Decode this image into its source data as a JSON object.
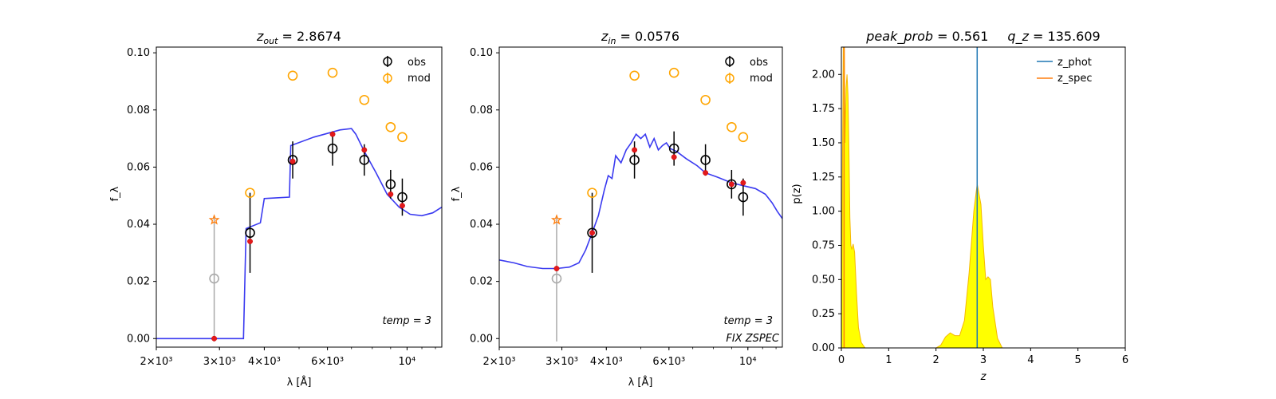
{
  "chart_data": [
    {
      "type": "scatter",
      "title_var": "z",
      "title_sub": "out",
      "title_value": "2.8674",
      "xlabel": "λ [Å]",
      "ylabel": "f_λ",
      "xscale": "log",
      "xlim": [
        2000,
        12500
      ],
      "ylim": [
        -0.003,
        0.102
      ],
      "xticks": [
        {
          "value": 2000,
          "label": "2×10³"
        },
        {
          "value": 3000,
          "label": "3×10³"
        },
        {
          "value": 4000,
          "label": "4×10³"
        },
        {
          "value": 6000,
          "label": "6×10³"
        },
        {
          "value": 10000,
          "label": "10⁴"
        }
      ],
      "yticks": [
        "0.00",
        "0.02",
        "0.04",
        "0.06",
        "0.08",
        "0.10"
      ],
      "ytick_values": [
        0.0,
        0.02,
        0.04,
        0.06,
        0.08,
        0.1
      ],
      "legend": {
        "position": "top-right",
        "entries": [
          "obs",
          "mod"
        ]
      },
      "annotations": [
        "temp = 3"
      ],
      "obs": [
        {
          "x": 2900,
          "y": 0.021,
          "err": 0.022,
          "color": "#aaaaaa"
        },
        {
          "x": 3650,
          "y": 0.037,
          "err": 0.014,
          "color": "#000000"
        },
        {
          "x": 4800,
          "y": 0.0625,
          "err": 0.0065,
          "color": "#000000"
        },
        {
          "x": 6200,
          "y": 0.0665,
          "err": 0.006,
          "color": "#000000"
        },
        {
          "x": 7600,
          "y": 0.0625,
          "err": 0.0055,
          "color": "#000000"
        },
        {
          "x": 9000,
          "y": 0.054,
          "err": 0.005,
          "color": "#000000"
        },
        {
          "x": 9700,
          "y": 0.0495,
          "err": 0.0065,
          "color": "#000000"
        }
      ],
      "mod": [
        {
          "x": 3650,
          "y": 0.051
        },
        {
          "x": 4800,
          "y": 0.092
        },
        {
          "x": 6200,
          "y": 0.093
        },
        {
          "x": 7600,
          "y": 0.0835
        },
        {
          "x": 9000,
          "y": 0.074
        },
        {
          "x": 9700,
          "y": 0.0705
        }
      ],
      "star": {
        "x": 2900,
        "y": 0.0415
      },
      "red_points": [
        {
          "x": 2900,
          "y": 0.0
        },
        {
          "x": 3650,
          "y": 0.034
        },
        {
          "x": 4800,
          "y": 0.062
        },
        {
          "x": 6200,
          "y": 0.0715
        },
        {
          "x": 7600,
          "y": 0.066
        },
        {
          "x": 9000,
          "y": 0.0505
        },
        {
          "x": 9700,
          "y": 0.0465
        }
      ],
      "sed": [
        [
          2000,
          0.0
        ],
        [
          3500,
          0.0
        ],
        [
          3560,
          0.0385
        ],
        [
          3900,
          0.0405
        ],
        [
          4000,
          0.049
        ],
        [
          4700,
          0.0495
        ],
        [
          4740,
          0.0675
        ],
        [
          5500,
          0.0705
        ],
        [
          6500,
          0.073
        ],
        [
          7000,
          0.0735
        ],
        [
          7200,
          0.0715
        ],
        [
          7600,
          0.0655
        ],
        [
          8200,
          0.058
        ],
        [
          8800,
          0.0505
        ],
        [
          9500,
          0.046
        ],
        [
          10200,
          0.0435
        ],
        [
          11000,
          0.043
        ],
        [
          11800,
          0.044
        ],
        [
          12500,
          0.046
        ]
      ]
    },
    {
      "type": "scatter",
      "title_var": "z",
      "title_sub": "in",
      "title_value": "0.0576",
      "xlabel": "λ [Å]",
      "ylabel": "f_λ",
      "xscale": "log",
      "xlim": [
        2000,
        12500
      ],
      "ylim": [
        -0.003,
        0.102
      ],
      "xticks": [
        {
          "value": 2000,
          "label": "2×10³"
        },
        {
          "value": 3000,
          "label": "3×10³"
        },
        {
          "value": 4000,
          "label": "4×10³"
        },
        {
          "value": 6000,
          "label": "6×10³"
        },
        {
          "value": 10000,
          "label": "10⁴"
        }
      ],
      "yticks": [
        "0.00",
        "0.02",
        "0.04",
        "0.06",
        "0.08",
        "0.10"
      ],
      "ytick_values": [
        0.0,
        0.02,
        0.04,
        0.06,
        0.08,
        0.1
      ],
      "legend": {
        "position": "top-right",
        "entries": [
          "obs",
          "mod"
        ]
      },
      "annotations": [
        "temp = 3",
        "FIX ZSPEC"
      ],
      "obs": [
        {
          "x": 2900,
          "y": 0.021,
          "err": 0.022,
          "color": "#aaaaaa"
        },
        {
          "x": 3650,
          "y": 0.037,
          "err": 0.014,
          "color": "#000000"
        },
        {
          "x": 4800,
          "y": 0.0625,
          "err": 0.0065,
          "color": "#000000"
        },
        {
          "x": 6200,
          "y": 0.0665,
          "err": 0.006,
          "color": "#000000"
        },
        {
          "x": 7600,
          "y": 0.0625,
          "err": 0.0055,
          "color": "#000000"
        },
        {
          "x": 9000,
          "y": 0.054,
          "err": 0.005,
          "color": "#000000"
        },
        {
          "x": 9700,
          "y": 0.0495,
          "err": 0.0065,
          "color": "#000000"
        }
      ],
      "mod": [
        {
          "x": 3650,
          "y": 0.051
        },
        {
          "x": 4800,
          "y": 0.092
        },
        {
          "x": 6200,
          "y": 0.093
        },
        {
          "x": 7600,
          "y": 0.0835
        },
        {
          "x": 9000,
          "y": 0.074
        },
        {
          "x": 9700,
          "y": 0.0705
        }
      ],
      "star": {
        "x": 2900,
        "y": 0.0415
      },
      "red_points": [
        {
          "x": 2900,
          "y": 0.0245
        },
        {
          "x": 3650,
          "y": 0.037
        },
        {
          "x": 4800,
          "y": 0.066
        },
        {
          "x": 6200,
          "y": 0.0635
        },
        {
          "x": 7600,
          "y": 0.058
        },
        {
          "x": 9000,
          "y": 0.054
        },
        {
          "x": 9700,
          "y": 0.0545
        }
      ],
      "sed": [
        [
          2000,
          0.0275
        ],
        [
          2200,
          0.0265
        ],
        [
          2400,
          0.0252
        ],
        [
          2650,
          0.0245
        ],
        [
          2900,
          0.0245
        ],
        [
          3150,
          0.025
        ],
        [
          3350,
          0.0265
        ],
        [
          3500,
          0.031
        ],
        [
          3650,
          0.037
        ],
        [
          3800,
          0.043
        ],
        [
          3950,
          0.052
        ],
        [
          4050,
          0.057
        ],
        [
          4150,
          0.056
        ],
        [
          4250,
          0.064
        ],
        [
          4400,
          0.0615
        ],
        [
          4550,
          0.066
        ],
        [
          4700,
          0.0685
        ],
        [
          4850,
          0.0715
        ],
        [
          5000,
          0.07
        ],
        [
          5150,
          0.0715
        ],
        [
          5300,
          0.067
        ],
        [
          5450,
          0.07
        ],
        [
          5600,
          0.066
        ],
        [
          5750,
          0.0675
        ],
        [
          5900,
          0.0685
        ],
        [
          6050,
          0.0665
        ],
        [
          6300,
          0.0655
        ],
        [
          6700,
          0.063
        ],
        [
          7200,
          0.0605
        ],
        [
          7600,
          0.058
        ],
        [
          8200,
          0.0565
        ],
        [
          9000,
          0.0545
        ],
        [
          9700,
          0.0535
        ],
        [
          10500,
          0.0525
        ],
        [
          11200,
          0.0505
        ],
        [
          11700,
          0.0475
        ],
        [
          12100,
          0.0445
        ],
        [
          12500,
          0.042
        ]
      ]
    },
    {
      "type": "area",
      "title_left_var": "peak_prob",
      "title_left_value": "0.561",
      "title_right_var": "q_z",
      "title_right_value": "135.609",
      "xlabel": "z",
      "ylabel": "p(z)",
      "xlim": [
        0,
        6
      ],
      "ylim": [
        0,
        2.2
      ],
      "xticks": [
        "0",
        "1",
        "2",
        "3",
        "4",
        "5",
        "6"
      ],
      "xtick_values": [
        0,
        1,
        2,
        3,
        4,
        5,
        6
      ],
      "yticks": [
        "0.00",
        "0.25",
        "0.50",
        "0.75",
        "1.00",
        "1.25",
        "1.50",
        "1.75",
        "2.00"
      ],
      "ytick_values": [
        0,
        0.25,
        0.5,
        0.75,
        1.0,
        1.25,
        1.5,
        1.75,
        2.0
      ],
      "legend": {
        "position": "top-right",
        "entries": [
          "z_phot",
          "z_spec"
        ]
      },
      "z_phot": 2.87,
      "z_spec": 0.0576,
      "colors": {
        "z_phot": "#1f77b4",
        "z_spec": "#ff7f0e",
        "fill": "#ffff00",
        "curve": "#f5b800"
      },
      "pz": [
        [
          0.0,
          0.0
        ],
        [
          0.02,
          1.2
        ],
        [
          0.04,
          2.2
        ],
        [
          0.06,
          2.3
        ],
        [
          0.08,
          1.5
        ],
        [
          0.1,
          1.9
        ],
        [
          0.12,
          2.0
        ],
        [
          0.14,
          1.85
        ],
        [
          0.16,
          1.45
        ],
        [
          0.18,
          0.95
        ],
        [
          0.2,
          0.75
        ],
        [
          0.22,
          0.72
        ],
        [
          0.25,
          0.76
        ],
        [
          0.28,
          0.7
        ],
        [
          0.32,
          0.4
        ],
        [
          0.36,
          0.15
        ],
        [
          0.42,
          0.04
        ],
        [
          0.5,
          0.0
        ],
        [
          2.0,
          0.0
        ],
        [
          2.1,
          0.02
        ],
        [
          2.2,
          0.08
        ],
        [
          2.3,
          0.11
        ],
        [
          2.4,
          0.09
        ],
        [
          2.5,
          0.09
        ],
        [
          2.6,
          0.2
        ],
        [
          2.7,
          0.55
        ],
        [
          2.8,
          1.0
        ],
        [
          2.87,
          1.2
        ],
        [
          2.95,
          1.05
        ],
        [
          3.0,
          0.75
        ],
        [
          3.05,
          0.5
        ],
        [
          3.1,
          0.52
        ],
        [
          3.15,
          0.5
        ],
        [
          3.2,
          0.3
        ],
        [
          3.3,
          0.07
        ],
        [
          3.4,
          0.0
        ],
        [
          5.0,
          0.0
        ]
      ]
    }
  ]
}
